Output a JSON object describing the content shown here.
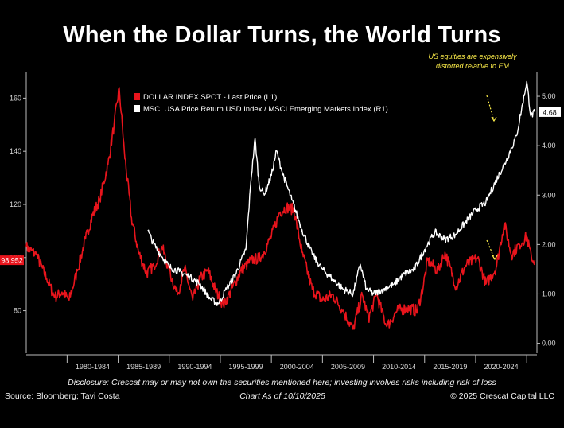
{
  "title": "When the Dollar Turns, the World Turns",
  "annotation": "US equities are expensively distorted relative to EM",
  "disclosure": "Disclosure: Crescat may or may not own the securities mentioned here; investing involves risks including risk of loss",
  "source": "Source: Bloomberg; Tavi Costa",
  "as_of": "Chart As of 10/10/2025",
  "copyright": "© 2025 Crescat Capital LLC",
  "colors": {
    "dxy": "#e8141c",
    "ratio": "#ffffff",
    "annotation": "#ffef4a",
    "axis": "#bdbdbd"
  },
  "chart_data": {
    "type": "line",
    "legend_position": "top-center",
    "grid": false,
    "x_tick_labels": [
      "1980-1984",
      "1985-1989",
      "1990-1994",
      "1995-1999",
      "2000-2004",
      "2005-2009",
      "2010-2014",
      "2015-2019",
      "2020-2024"
    ],
    "x_range": [
      1976,
      2026
    ],
    "y_left": {
      "ticks": [
        80,
        100,
        120,
        140,
        160
      ],
      "tick_labels": [
        "80",
        "100",
        "120",
        "140",
        "160"
      ],
      "range": [
        64,
        170
      ]
    },
    "y_right": {
      "ticks": [
        0,
        1,
        2,
        3,
        4,
        5
      ],
      "tick_labels": [
        "0.00",
        "1.00",
        "2.00",
        "3.00",
        "4.00",
        "5.00"
      ],
      "range": [
        -0.2,
        5.5
      ]
    },
    "last_value_left": "98.952",
    "last_value_right": "4.68",
    "series": [
      {
        "name": "DOLLAR INDEX SPOT - Last Price (L1)",
        "axis": "left",
        "points": [
          [
            1976.0,
            104
          ],
          [
            1977.0,
            101
          ],
          [
            1978.0,
            92
          ],
          [
            1978.8,
            85
          ],
          [
            1979.5,
            87
          ],
          [
            1980.2,
            84
          ],
          [
            1981.0,
            95
          ],
          [
            1981.8,
            107
          ],
          [
            1982.5,
            116
          ],
          [
            1983.2,
            122
          ],
          [
            1984.0,
            135
          ],
          [
            1984.6,
            150
          ],
          [
            1985.1,
            164
          ],
          [
            1985.6,
            140
          ],
          [
            1986.3,
            115
          ],
          [
            1987.0,
            102
          ],
          [
            1987.8,
            94
          ],
          [
            1988.5,
            97
          ],
          [
            1989.3,
            104
          ],
          [
            1990.0,
            95
          ],
          [
            1990.8,
            86
          ],
          [
            1991.5,
            96
          ],
          [
            1992.3,
            84
          ],
          [
            1993.0,
            92
          ],
          [
            1993.8,
            95
          ],
          [
            1994.5,
            88
          ],
          [
            1995.3,
            82
          ],
          [
            1996.0,
            87
          ],
          [
            1997.0,
            95
          ],
          [
            1998.0,
            99
          ],
          [
            1999.0,
            100
          ],
          [
            2000.0,
            108
          ],
          [
            2000.8,
            117
          ],
          [
            2001.5,
            119
          ],
          [
            2002.2,
            118
          ],
          [
            2003.0,
            102
          ],
          [
            2004.0,
            88
          ],
          [
            2005.0,
            84
          ],
          [
            2006.0,
            86
          ],
          [
            2007.0,
            80
          ],
          [
            2008.0,
            73
          ],
          [
            2008.9,
            86
          ],
          [
            2009.5,
            77
          ],
          [
            2010.3,
            86
          ],
          [
            2011.3,
            74
          ],
          [
            2012.3,
            80
          ],
          [
            2013.3,
            81
          ],
          [
            2014.3,
            80
          ],
          [
            2014.9,
            90
          ],
          [
            2015.3,
            99
          ],
          [
            2016.3,
            95
          ],
          [
            2017.0,
            102
          ],
          [
            2018.1,
            89
          ],
          [
            2019.0,
            97
          ],
          [
            2020.2,
            100
          ],
          [
            2021.0,
            90
          ],
          [
            2022.0,
            96
          ],
          [
            2022.8,
            113
          ],
          [
            2023.5,
            101
          ],
          [
            2024.3,
            105
          ],
          [
            2025.0,
            108
          ],
          [
            2025.5,
            99
          ],
          [
            2025.8,
            99
          ]
        ]
      },
      {
        "name": "MSCI USA Price Return USD Index / MSCI Emerging Markets Index (R1)",
        "axis": "right",
        "points": [
          [
            1987.9,
            2.28
          ],
          [
            1988.5,
            2.0
          ],
          [
            1989.3,
            1.75
          ],
          [
            1990.0,
            1.55
          ],
          [
            1991.0,
            1.45
          ],
          [
            1992.0,
            1.35
          ],
          [
            1993.0,
            1.2
          ],
          [
            1994.0,
            0.9
          ],
          [
            1994.8,
            0.8
          ],
          [
            1995.6,
            1.1
          ],
          [
            1996.5,
            1.4
          ],
          [
            1997.5,
            1.9
          ],
          [
            1998.0,
            3.3
          ],
          [
            1998.4,
            4.15
          ],
          [
            1998.8,
            3.2
          ],
          [
            1999.3,
            3.0
          ],
          [
            2000.0,
            3.4
          ],
          [
            2000.5,
            3.9
          ],
          [
            2001.0,
            3.5
          ],
          [
            2002.0,
            2.9
          ],
          [
            2003.0,
            2.3
          ],
          [
            2004.0,
            1.8
          ],
          [
            2005.0,
            1.5
          ],
          [
            2006.0,
            1.3
          ],
          [
            2007.0,
            1.1
          ],
          [
            2008.0,
            1.0
          ],
          [
            2008.7,
            1.6
          ],
          [
            2009.3,
            1.1
          ],
          [
            2010.0,
            1.0
          ],
          [
            2011.0,
            1.1
          ],
          [
            2012.0,
            1.2
          ],
          [
            2013.0,
            1.4
          ],
          [
            2014.0,
            1.5
          ],
          [
            2015.0,
            1.9
          ],
          [
            2016.0,
            2.25
          ],
          [
            2017.0,
            2.1
          ],
          [
            2018.0,
            2.2
          ],
          [
            2019.0,
            2.45
          ],
          [
            2020.0,
            2.7
          ],
          [
            2021.0,
            2.85
          ],
          [
            2022.0,
            3.3
          ],
          [
            2023.0,
            3.7
          ],
          [
            2024.0,
            4.2
          ],
          [
            2024.6,
            4.85
          ],
          [
            2025.0,
            5.3
          ],
          [
            2025.4,
            4.6
          ],
          [
            2025.8,
            4.68
          ]
        ]
      }
    ]
  }
}
